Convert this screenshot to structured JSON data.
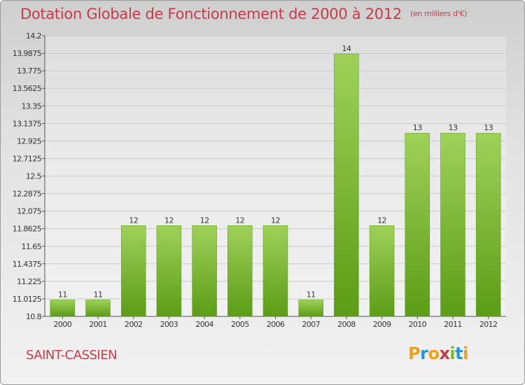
{
  "chart_data": {
    "type": "bar",
    "title": "Dotation Globale de Fonctionnement de 2000 à 2012",
    "subtitle": "(en milliers d'€)",
    "categories": [
      "2000",
      "2001",
      "2002",
      "2003",
      "2004",
      "2005",
      "2006",
      "2007",
      "2008",
      "2009",
      "2010",
      "2011",
      "2012"
    ],
    "values": [
      11,
      11,
      12,
      12,
      12,
      12,
      12,
      11,
      14,
      12,
      13,
      13,
      13
    ],
    "value_labels": [
      "11",
      "11",
      "12",
      "12",
      "12",
      "12",
      "12",
      "11",
      "14",
      "12",
      "13",
      "13",
      "13"
    ],
    "bar_tops": [
      11.0,
      11.0,
      11.9,
      11.9,
      11.9,
      11.9,
      11.9,
      11.0,
      13.98,
      11.9,
      13.02,
      13.02,
      13.02
    ],
    "y_ticks": [
      "10.8",
      "11.0125",
      "11.225",
      "11.4375",
      "11.65",
      "11.8625",
      "12.075",
      "12.2875",
      "12.5",
      "12.7125",
      "12.925",
      "13.1375",
      "13.35",
      "13.5625",
      "13.775",
      "13.9875",
      "14.2"
    ],
    "ylim": [
      10.8,
      14.2
    ],
    "grid": true,
    "bar_color": "#7cb82e"
  },
  "commune_name": "SAINT-CASSIEN",
  "logo": {
    "letters": [
      "P",
      "r",
      "o",
      "x",
      "i",
      "t",
      "i"
    ],
    "colors": [
      "#f0a020",
      "#2a93d5",
      "#f0a020",
      "#c33c4a",
      "#7cb82e",
      "#2a93d5",
      "#f0a020"
    ]
  }
}
